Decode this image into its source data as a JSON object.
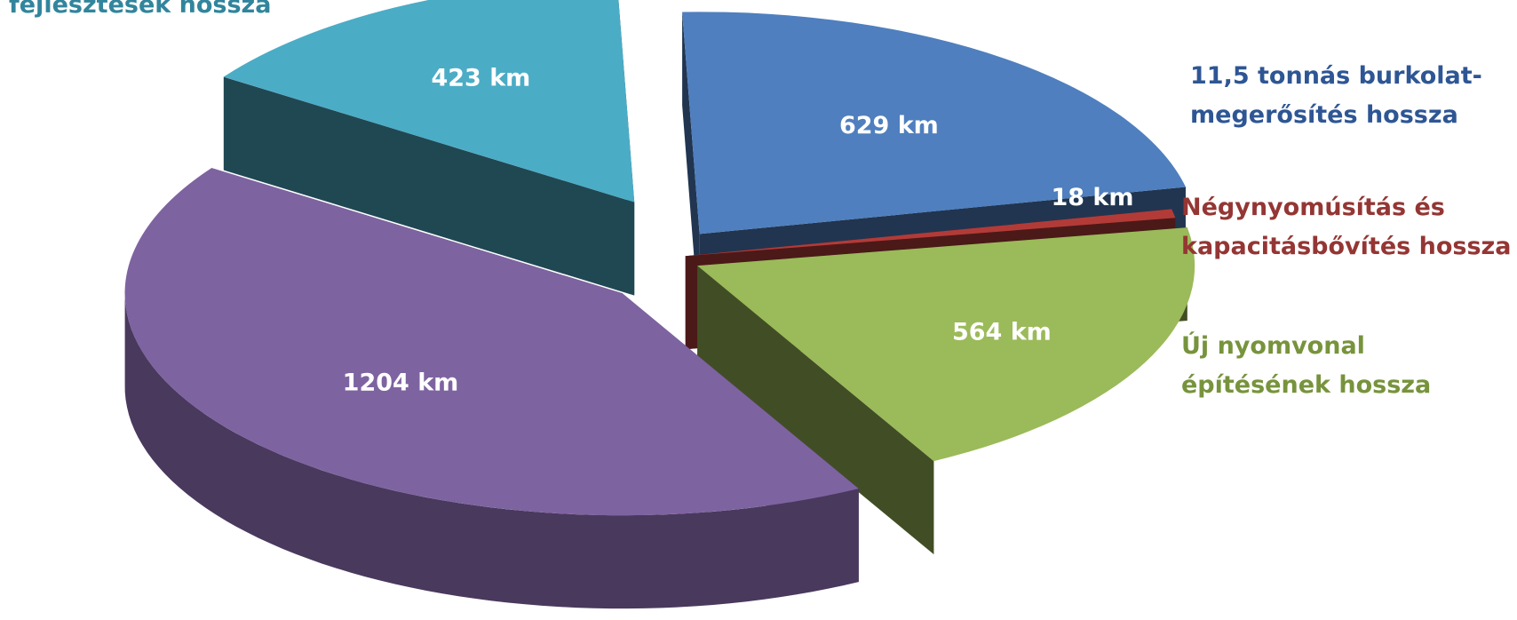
{
  "chart_data": {
    "type": "pie",
    "style": "3d-exploded",
    "unit": "km",
    "slices": [
      {
        "name": "11,5 tonnás burkolat-megerősítés hossza",
        "value": 629,
        "label": "629 km",
        "color": "#4f7fbe"
      },
      {
        "name": "Négynyomúsítás és kapacitásbővítés hossza",
        "value": 18,
        "label": "18 km",
        "color": "#b23b38"
      },
      {
        "name": "Új nyomvonal építésének hossza",
        "value": 564,
        "label": "564 km",
        "color": "#9bba59"
      },
      {
        "name": "",
        "value": 1204,
        "label": "1204 km",
        "color": "#7e63a1"
      },
      {
        "name": "fejlesztések hossza",
        "value": 423,
        "label": "423 km",
        "color": "#4bacc6"
      }
    ],
    "legend": [
      {
        "lines": [
          "fejlesztések hossza"
        ],
        "color": "#31859c"
      },
      {
        "lines": [
          "11,5 tonnás burkolat-",
          "megerősítés hossza"
        ],
        "color": "#2e5694"
      },
      {
        "lines": [
          "Négynyomúsítás és",
          "kapacitásbővítés hossza"
        ],
        "color": "#943634"
      },
      {
        "lines": [
          "Új nyomvonal",
          "építésének hossza"
        ],
        "color": "#77933c"
      }
    ]
  }
}
